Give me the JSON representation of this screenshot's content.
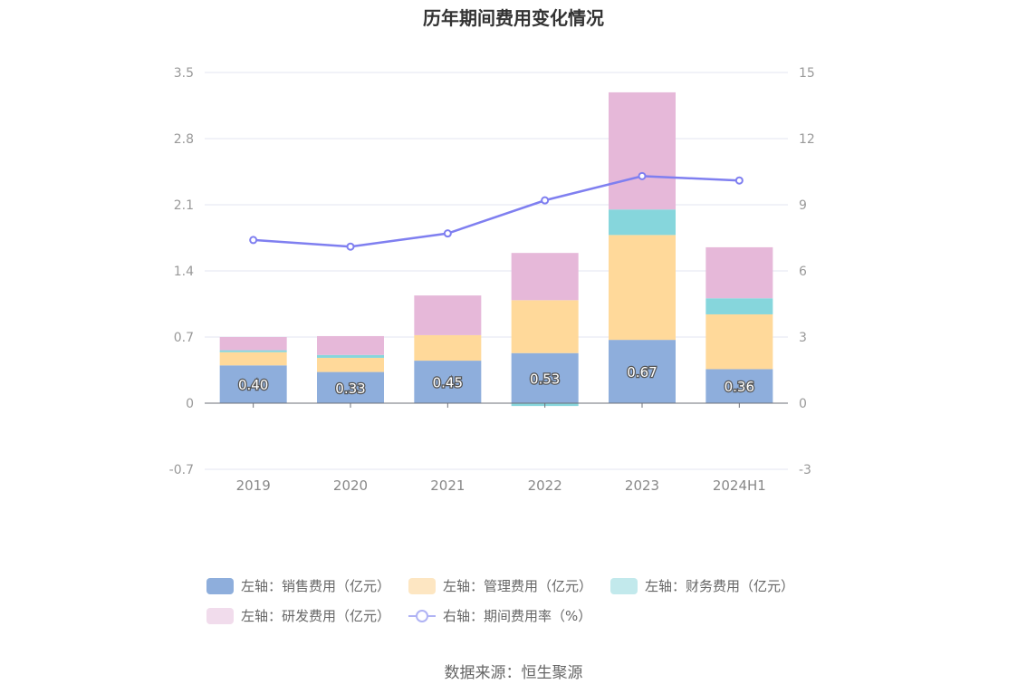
{
  "chart_data": {
    "type": "bar",
    "title": "历年期间费用变化情况",
    "categories": [
      "2019",
      "2020",
      "2021",
      "2022",
      "2023",
      "2024H1"
    ],
    "stacked": true,
    "left_axis": {
      "ticks": [
        "-0.7",
        "0",
        "0.7",
        "1.4",
        "2.1",
        "2.8",
        "3.5"
      ],
      "ylim": [
        -0.7,
        3.5
      ]
    },
    "right_axis": {
      "ticks": [
        "-3",
        "0",
        "3",
        "6",
        "9",
        "12",
        "15"
      ],
      "ylim": [
        -3,
        15
      ]
    },
    "series": [
      {
        "name": "左轴：销售费用（亿元）",
        "axis": "left",
        "type": "bar",
        "color": "#8eaedc",
        "values": [
          0.4,
          0.33,
          0.45,
          0.53,
          0.67,
          0.36
        ],
        "labels": [
          "0.40",
          "0.33",
          "0.45",
          "0.53",
          "0.67",
          "0.36"
        ]
      },
      {
        "name": "左轴：管理费用（亿元）",
        "axis": "left",
        "type": "bar",
        "color": "#ffd99a",
        "values": [
          0.14,
          0.15,
          0.27,
          0.56,
          1.11,
          0.58
        ]
      },
      {
        "name": "左轴：财务费用（亿元）",
        "axis": "left",
        "type": "bar",
        "color": "#86d6dc",
        "values": [
          0.02,
          0.03,
          0.0,
          -0.03,
          0.27,
          0.17
        ]
      },
      {
        "name": "左轴：研发费用（亿元）",
        "axis": "left",
        "type": "bar",
        "color": "#e6b8d9",
        "values": [
          0.14,
          0.2,
          0.42,
          0.5,
          1.24,
          0.54
        ]
      },
      {
        "name": "右轴：期间费用率（%）",
        "axis": "right",
        "type": "line",
        "color": "#7f7ff0",
        "values": [
          7.4,
          7.1,
          7.7,
          9.2,
          10.3,
          10.1
        ]
      }
    ]
  },
  "source": "数据来源：恒生聚源"
}
